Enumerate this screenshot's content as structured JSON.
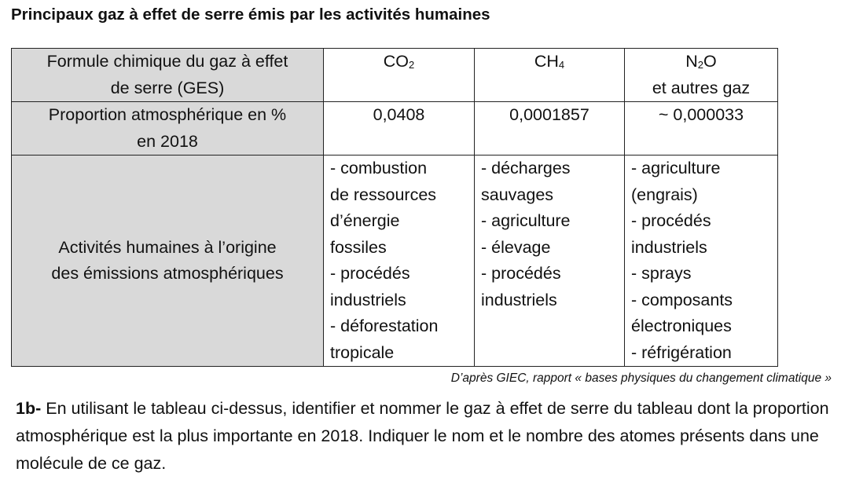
{
  "title": "Principaux gaz à effet de serre émis par les activités humaines",
  "table": {
    "row_formula": {
      "header": [
        "Formule chimique du gaz à effet",
        "de serre (GES)"
      ],
      "co2": {
        "base": "CO",
        "sub": "2"
      },
      "ch4": {
        "base": "CH",
        "sub": "4"
      },
      "n2o": {
        "base": "N",
        "sub": "2",
        "tail": "O",
        "line2": "et autres gaz"
      }
    },
    "row_proportion": {
      "header": [
        "Proportion atmosphérique en %",
        "en 2018"
      ],
      "co2": "0,0408",
      "ch4": "0,0001857",
      "n2o": "~ 0,000033"
    },
    "row_activities": {
      "header": [
        "Activités humaines à l’origine",
        "des émissions atmosphériques"
      ],
      "co2": [
        "- combustion",
        "de ressources",
        "d’énergie",
        "fossiles",
        "- procédés",
        "industriels",
        "- déforestation",
        "tropicale"
      ],
      "ch4": [
        "- décharges",
        "sauvages",
        "- agriculture",
        "- élevage",
        "- procédés",
        "industriels"
      ],
      "n2o": [
        "- agriculture",
        "(engrais)",
        "- procédés",
        "industriels",
        "- sprays",
        "- composants",
        "électroniques",
        "- réfrigération"
      ]
    }
  },
  "source": "D’après GIEC, rapport « bases physiques du changement climatique »",
  "question": {
    "label": "1b-",
    "text": " En utilisant le tableau ci-dessus, identifier et nommer le gaz à effet de serre du tableau dont la proportion atmosphérique est la plus importante en 2018. Indiquer le nom et le nombre des atomes présents dans une molécule de ce gaz."
  }
}
